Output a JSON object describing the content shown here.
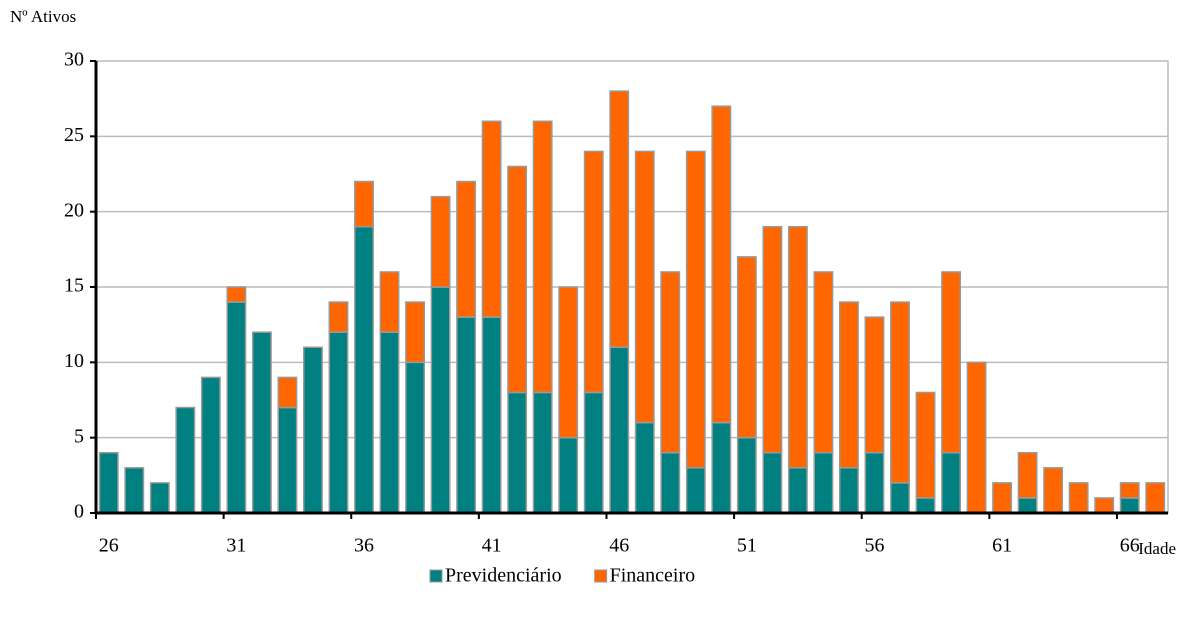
{
  "chart_data": {
    "type": "stacked-bar",
    "y_label": "Nº Ativos",
    "x_label": "Idade",
    "categories": [
      26,
      null,
      null,
      null,
      null,
      31,
      null,
      null,
      null,
      null,
      36,
      null,
      null,
      null,
      null,
      41,
      null,
      null,
      null,
      null,
      46,
      null,
      null,
      null,
      null,
      51,
      null,
      null,
      null,
      null,
      56,
      null,
      null,
      null,
      null,
      61,
      null,
      null,
      null,
      null,
      66,
      null
    ],
    "series": [
      {
        "name": "Previdenciário",
        "color": "#008080",
        "values": [
          4,
          3,
          2,
          7,
          9,
          14,
          12,
          7,
          11,
          12,
          19,
          12,
          10,
          15,
          13,
          13,
          8,
          8,
          5,
          8,
          11,
          6,
          4,
          3,
          6,
          5,
          4,
          3,
          4,
          3,
          4,
          2,
          1,
          4,
          0,
          0,
          1,
          0,
          0,
          0,
          1,
          0
        ]
      },
      {
        "name": "Financeiro",
        "color": "#ff6600",
        "values": [
          0,
          0,
          0,
          0,
          0,
          1,
          0,
          2,
          0,
          2,
          3,
          4,
          4,
          6,
          9,
          13,
          15,
          18,
          10,
          16,
          17,
          18,
          12,
          21,
          21,
          12,
          15,
          16,
          12,
          11,
          9,
          12,
          7,
          12,
          10,
          2,
          3,
          3,
          2,
          1,
          1,
          2
        ]
      }
    ],
    "ylim": [
      0,
      30
    ],
    "yticks": [
      0,
      5,
      10,
      15,
      20,
      25,
      30
    ],
    "grid": true
  }
}
